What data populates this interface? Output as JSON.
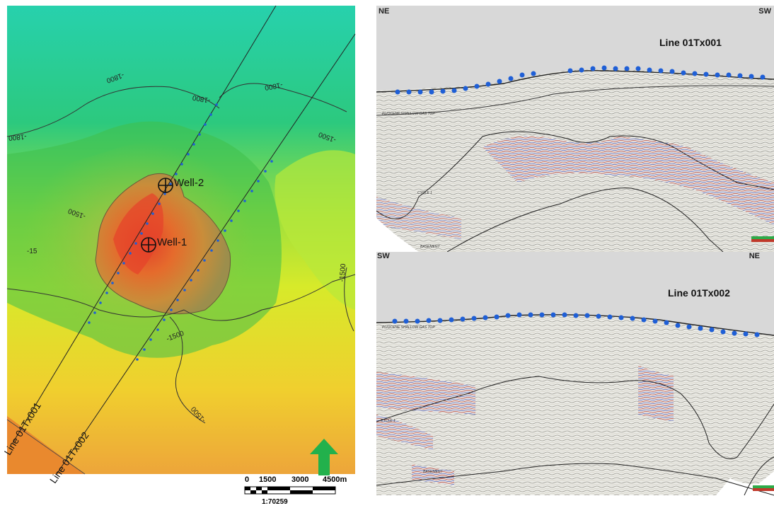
{
  "map": {
    "wells": [
      {
        "name": "Well-2"
      },
      {
        "name": "Well-1"
      }
    ],
    "lines": [
      {
        "name": "Line 01Tx001"
      },
      {
        "name": "Line 01Tx002"
      }
    ],
    "contours": [
      "-1800",
      "-1800",
      "-1800",
      "-1800",
      "-1500",
      "-15",
      "-1500",
      "-1500",
      "-1500",
      "-1500"
    ]
  },
  "scalebar": {
    "ticks": [
      "0",
      "1500",
      "3000",
      "4500m"
    ],
    "ratio": "1:70259"
  },
  "north_arrow": {
    "icon": "north-arrow-icon",
    "color": "#22b14c"
  },
  "seismic_top": {
    "left_label": "NE",
    "right_label": "SW",
    "title": "Line 01Tx001",
    "horizons": [
      "PLIOCENE SHALLOW GAS TOP",
      "CYCLE 1",
      "BASEMENT"
    ]
  },
  "seismic_bottom": {
    "left_label": "SW",
    "right_label": "NE",
    "title": "Line 01Tx002",
    "horizons": [
      "PLIOCENE SHALLOW GAS TOP",
      "CYCLE 1",
      "BASEMENT"
    ]
  },
  "colors": {
    "marker_blue": "#1f5fd6",
    "map_high": "#d94a2a",
    "map_low": "#1fc6a0"
  }
}
